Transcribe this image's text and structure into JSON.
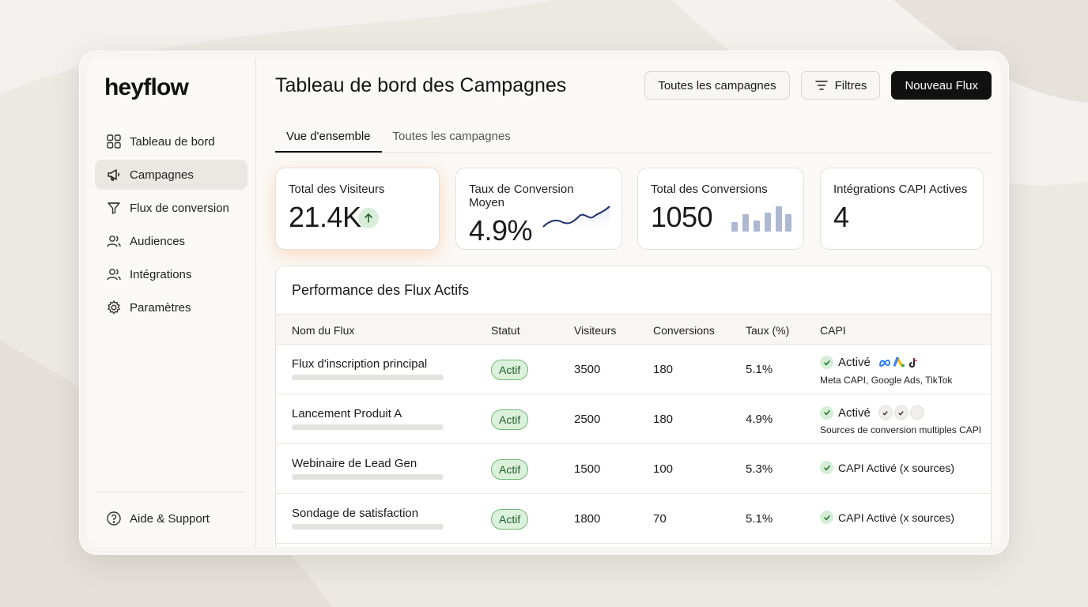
{
  "app": {
    "logo": "heyflow"
  },
  "sidebar": {
    "items": [
      {
        "label": "Tableau de bord",
        "icon": "dashboard-grid-icon",
        "active": false
      },
      {
        "label": "Campagnes",
        "icon": "megaphone-icon",
        "active": true
      },
      {
        "label": "Flux de conversion",
        "icon": "funnel-icon",
        "active": false
      },
      {
        "label": "Audiences",
        "icon": "users-icon",
        "active": false
      },
      {
        "label": "Intégrations",
        "icon": "users-icon",
        "active": false
      },
      {
        "label": "Paramètres",
        "icon": "gear-icon",
        "active": false
      }
    ],
    "help": {
      "label": "Aide & Support",
      "icon": "help-circle-icon"
    }
  },
  "header": {
    "title": "Tableau de bord des Campagnes",
    "buttons": {
      "all_campaigns": "Toutes les campagnes",
      "filters": "Filtres",
      "new_flow": "Nouveau Flux"
    }
  },
  "tabs": [
    {
      "label": "Vue d'ensemble",
      "active": true
    },
    {
      "label": "Toutes les campagnes",
      "active": false
    }
  ],
  "cards": {
    "visitors": {
      "label": "Total des Visiteurs",
      "value": "21.4K",
      "trend": "up"
    },
    "conversion_rate": {
      "label": "Taux de Conversion Moyen",
      "value": "4.9%"
    },
    "conversions": {
      "label": "Total des Conversions",
      "value": "1050"
    },
    "capi": {
      "label": "Intégrations CAPI Actives",
      "value": "4"
    }
  },
  "table": {
    "title": "Performance des Flux Actifs",
    "columns": {
      "name": "Nom du Flux",
      "status": "Statut",
      "visitors": "Visiteurs",
      "conversions": "Conversions",
      "rate": "Taux (%)",
      "capi": "CAPI"
    },
    "rows": [
      {
        "name": "Flux d'inscription principal",
        "status": "Actif",
        "visitors": "3500",
        "conversions": "180",
        "rate": "5.1%",
        "capi_label": "Activé",
        "capi_detail": "Meta CAPI, Google Ads, TikTok"
      },
      {
        "name": "Lancement Produit A",
        "status": "Actif",
        "visitors": "2500",
        "conversions": "180",
        "rate": "4.9%",
        "capi_label": "Activé",
        "capi_detail": "Sources de conversion multiples CAPI"
      },
      {
        "name": "Webinaire de Lead Gen",
        "status": "Actif",
        "visitors": "1500",
        "conversions": "100",
        "rate": "5.3%",
        "capi_label": "CAPI Activé (x sources)"
      },
      {
        "name": "Sondage de satisfaction",
        "status": "Actif",
        "visitors": "1800",
        "conversions": "70",
        "rate": "5.1%",
        "capi_label": "CAPI Activé (x sources)"
      }
    ]
  },
  "colors": {
    "accent_dark": "#111111",
    "status_green_bg": "#dcf1dc",
    "status_green_border": "#72b876",
    "sparkline": "#1f2f6b",
    "bars": "#aeb8d1"
  }
}
